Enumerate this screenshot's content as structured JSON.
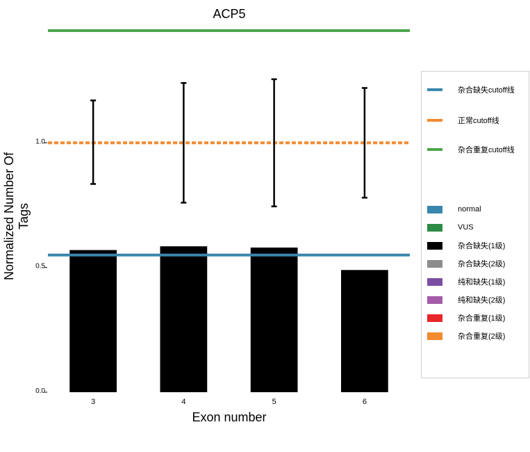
{
  "chart_data": {
    "type": "bar",
    "title": "ACP5",
    "xlabel": "Exon number",
    "ylabel": "Normalized Number Of Tags",
    "categories": [
      "3",
      "4",
      "5",
      "6"
    ],
    "values": [
      0.57,
      0.585,
      0.58,
      0.49
    ],
    "bar_color": "#000000",
    "error_bars": [
      {
        "category": "3",
        "low": 0.835,
        "high": 1.17
      },
      {
        "category": "4",
        "low": 0.76,
        "high": 1.24
      },
      {
        "category": "5",
        "low": 0.745,
        "high": 1.255
      },
      {
        "category": "6",
        "low": 0.78,
        "high": 1.22
      }
    ],
    "reference_lines": [
      {
        "name": "杂合缺失cutoff线",
        "y": 0.55,
        "color": "#3a87ad",
        "style": "solid"
      },
      {
        "name": "正常cutoff线",
        "y": 1.0,
        "color": "#f28a30",
        "style": "dashed"
      },
      {
        "name": "杂合重复cutoff线",
        "y": 1.45,
        "color": "#4ca64c",
        "style": "solid"
      }
    ],
    "ylim": [
      0,
      1.45
    ],
    "yticks": [
      {
        "value": 0.0,
        "label": "0.0"
      },
      {
        "value": 0.5,
        "label": "0.5"
      },
      {
        "value": 1.0,
        "label": "1.0"
      }
    ],
    "grid": false,
    "legend_position": "right",
    "legend": {
      "lines": [
        {
          "label": "杂合缺失cutoff线",
          "color": "#3a87ad"
        },
        {
          "label": "正常cutoff线",
          "color": "#f28a30"
        },
        {
          "label": "杂合重复cutoff线",
          "color": "#4ca64c"
        }
      ],
      "patches": [
        {
          "label": "normal",
          "color": "#3a87ad"
        },
        {
          "label": "VUS",
          "color": "#2e8b46"
        },
        {
          "label": "杂合缺失(1级)",
          "color": "#000000"
        },
        {
          "label": "杂合缺失(2级)",
          "color": "#8c8c8c"
        },
        {
          "label": "纯和缺失(1级)",
          "color": "#7b4ea3"
        },
        {
          "label": "纯和缺失(2级)",
          "color": "#a45ba8"
        },
        {
          "label": "杂合重复(1级)",
          "color": "#e8262a"
        },
        {
          "label": "杂合重复(2级)",
          "color": "#f28a30"
        }
      ]
    }
  }
}
